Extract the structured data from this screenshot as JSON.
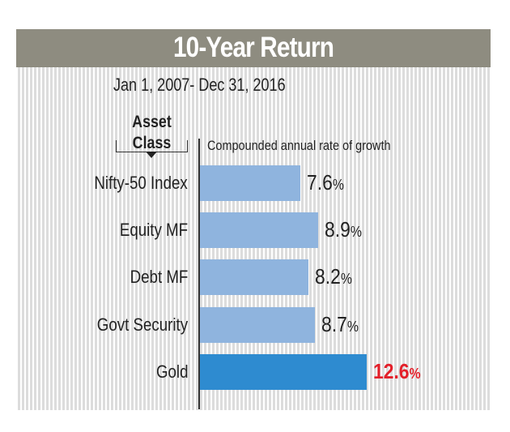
{
  "chart_data": {
    "type": "bar",
    "orientation": "horizontal",
    "title": "10-Year Return",
    "subtitle": "Jan 1, 2007- Dec 31, 2016",
    "category_axis_label": "Asset Class",
    "value_axis_label": "Compounded annual rate of growth",
    "categories": [
      "Nifty-50 Index",
      "Equity MF",
      "Debt MF",
      "Govt Security",
      "Gold"
    ],
    "values": [
      7.6,
      8.9,
      8.2,
      8.7,
      12.6
    ],
    "value_labels": [
      "7.6",
      "8.9",
      "8.2",
      "8.7",
      "12.6"
    ],
    "unit": "%",
    "highlight_index": 4,
    "colors": {
      "bar": "#8fb4de",
      "highlight_bar": "#2e8bd0",
      "highlight_label": "#e3202a",
      "header": "#8e8c80"
    },
    "grid": false
  }
}
